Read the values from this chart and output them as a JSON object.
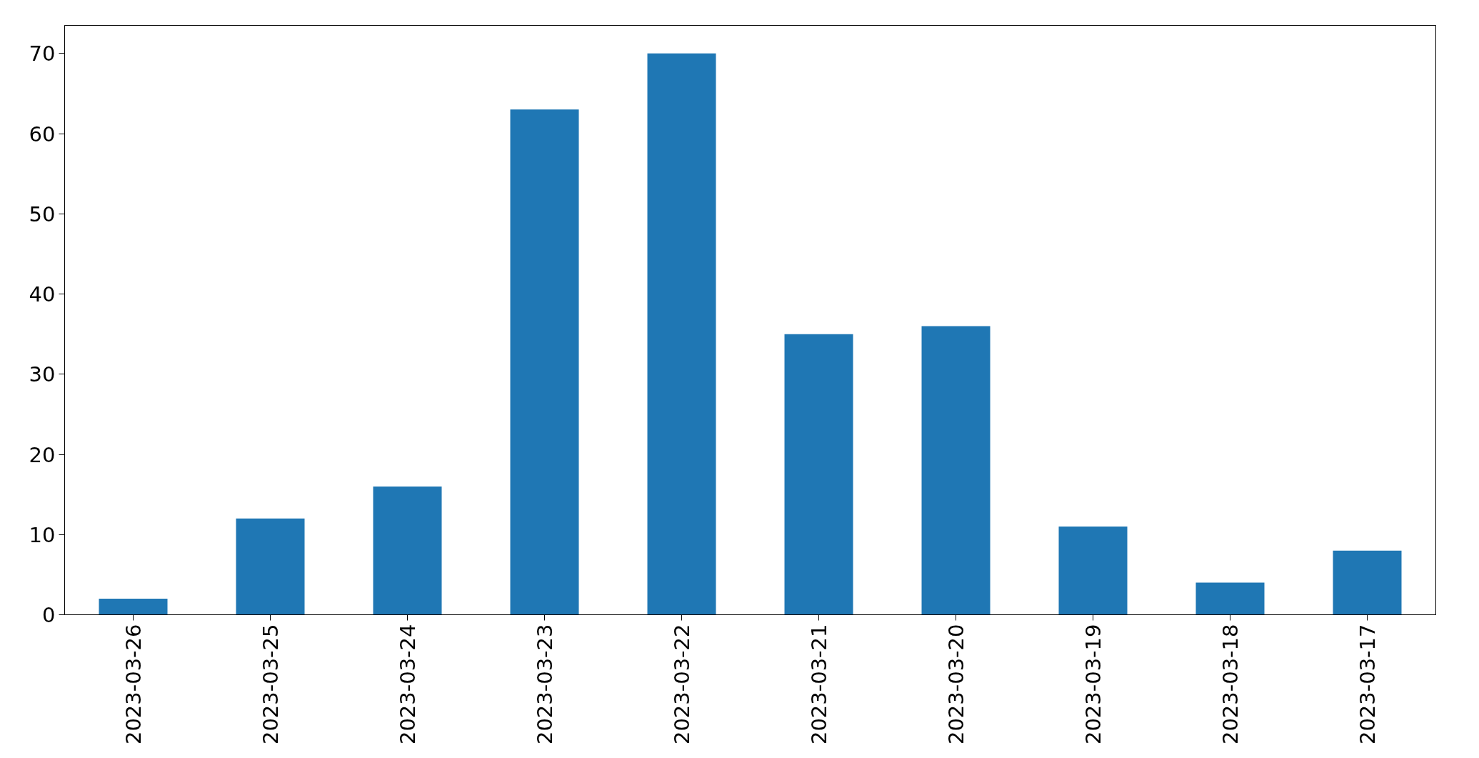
{
  "chart_data": {
    "type": "bar",
    "categories": [
      "2023-03-26",
      "2023-03-25",
      "2023-03-24",
      "2023-03-23",
      "2023-03-22",
      "2023-03-21",
      "2023-03-20",
      "2023-03-19",
      "2023-03-18",
      "2023-03-17"
    ],
    "values": [
      2,
      12,
      16,
      63,
      70,
      35,
      36,
      11,
      4,
      8
    ],
    "color": "#1f77b4",
    "ylim": [
      0,
      73.5
    ],
    "yticks": [
      0,
      10,
      20,
      30,
      40,
      50,
      60,
      70
    ],
    "grid": false
  }
}
